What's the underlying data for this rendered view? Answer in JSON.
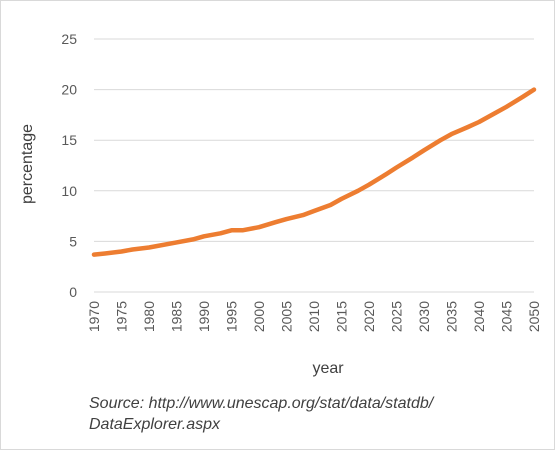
{
  "chart_data": {
    "type": "line",
    "xlabel": "year",
    "ylabel": "percentage",
    "ylim": [
      0,
      25
    ],
    "yticks": [
      0,
      5,
      10,
      15,
      20,
      25
    ],
    "x_tick_labels": [
      "1970",
      "1975",
      "1980",
      "1985",
      "1990",
      "1995",
      "2000",
      "2005",
      "2010",
      "2015",
      "2020",
      "2025",
      "2030",
      "2035",
      "2040",
      "2045",
      "2050"
    ],
    "grid": true,
    "legend": "none",
    "series": [
      {
        "color": "#ed7d31",
        "x": [
          1970,
          1972,
          1975,
          1977,
          1980,
          1985,
          1988,
          1990,
          1993,
          1995,
          1997,
          2000,
          2003,
          2005,
          2008,
          2010,
          2013,
          2015,
          2018,
          2020,
          2023,
          2025,
          2028,
          2030,
          2033,
          2035,
          2038,
          2040,
          2043,
          2045,
          2048,
          2050
        ],
        "y": [
          3.7,
          3.8,
          4.0,
          4.2,
          4.4,
          4.9,
          5.2,
          5.5,
          5.8,
          6.1,
          6.1,
          6.4,
          6.9,
          7.2,
          7.6,
          8.0,
          8.6,
          9.2,
          10.0,
          10.6,
          11.6,
          12.3,
          13.3,
          14.0,
          15.0,
          15.6,
          16.3,
          16.8,
          17.7,
          18.3,
          19.3,
          20.0
        ]
      }
    ]
  },
  "source_text": "Source: http://www.unescap.org/stat/data/statdb/",
  "source_text_2": "DataExplorer.aspx"
}
